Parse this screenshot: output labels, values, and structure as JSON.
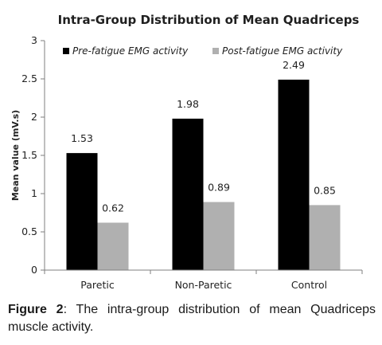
{
  "chart_data": {
    "type": "bar",
    "title": "Intra-Group Distribution of Mean Quadriceps",
    "ylabel": "Mean value (mV.s)",
    "xlabel": "",
    "ylim": [
      0,
      3
    ],
    "yticks": [
      "0",
      "0.5",
      "1",
      "1.5",
      "2",
      "2.5",
      "3"
    ],
    "ytick_values": [
      0,
      0.5,
      1,
      1.5,
      2,
      2.5,
      3
    ],
    "grid": false,
    "legend_position": "top",
    "categories": [
      "Paretic",
      "Non-Paretic",
      "Control"
    ],
    "series": [
      {
        "name": "Pre-fatigue EMG activity",
        "values": [
          1.53,
          1.98,
          2.49
        ],
        "labels": [
          "1.53",
          "1.98",
          "2.49"
        ],
        "color": "#000000"
      },
      {
        "name": "Post-fatigue EMG activity",
        "values": [
          0.62,
          0.89,
          0.85
        ],
        "labels": [
          "0.62",
          "0.89",
          "0.85"
        ],
        "color": "#b0b0b0"
      }
    ]
  },
  "caption": {
    "label": "Figure 2",
    "text": ": The intra-group distribution of mean Quadriceps muscle activity."
  }
}
